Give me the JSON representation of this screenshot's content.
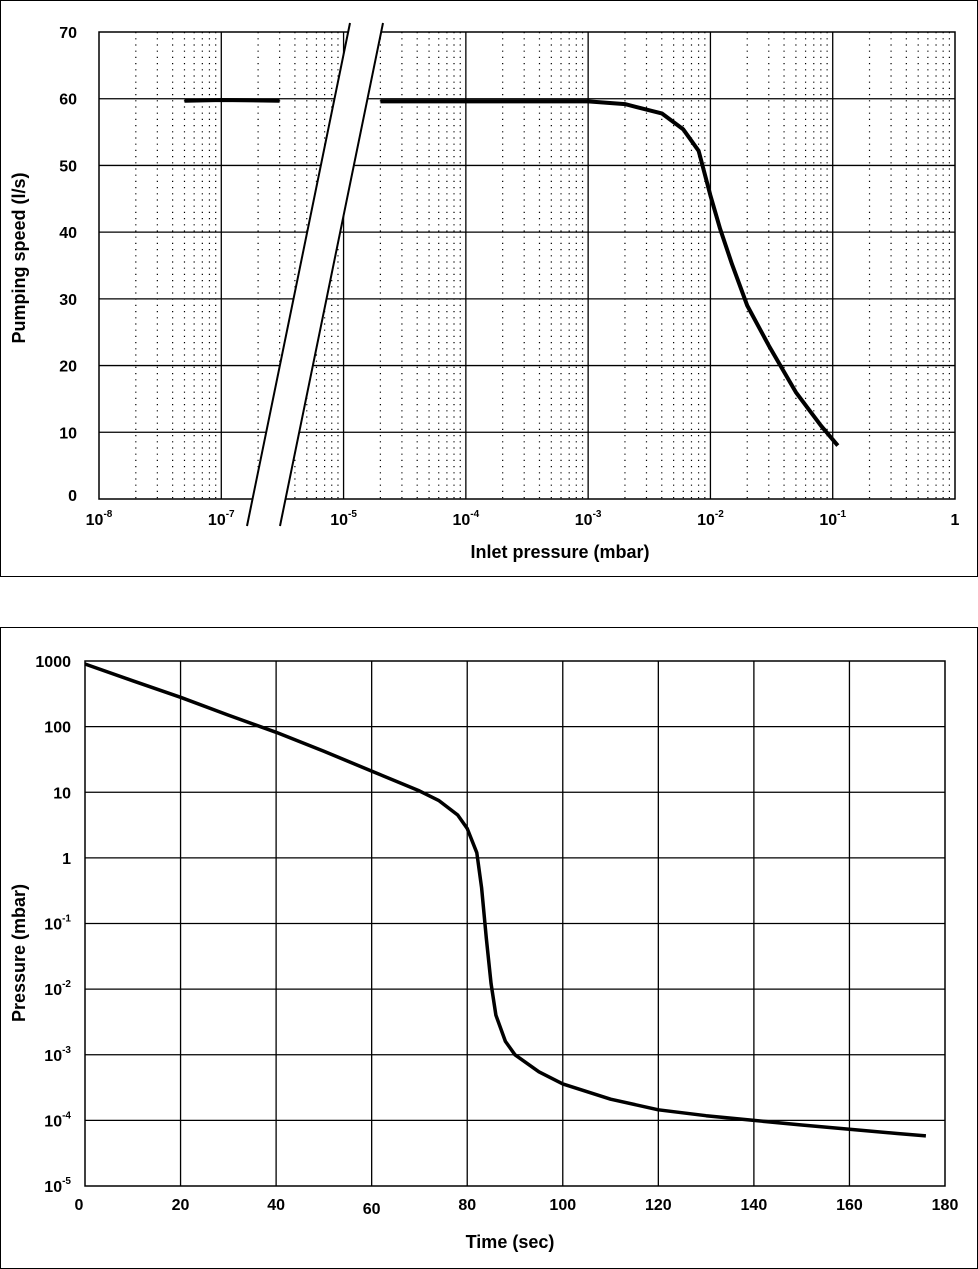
{
  "chart_data": [
    {
      "type": "line",
      "title": "",
      "xlabel": "Inlet pressure (mbar)",
      "ylabel": "Pumping speed (l/s)",
      "x_scale": "log",
      "xlim": [
        1e-08,
        1
      ],
      "ylim": [
        0,
        70
      ],
      "grid": true,
      "axis_break": "between 1e-7 and 1e-5",
      "x_ticks": [
        {
          "base": "10",
          "exp": "-8"
        },
        {
          "base": "10",
          "exp": "-7"
        },
        {
          "base": "10",
          "exp": "-5"
        },
        {
          "base": "10",
          "exp": "-4"
        },
        {
          "base": "10",
          "exp": "-3"
        },
        {
          "base": "10",
          "exp": "-2"
        },
        {
          "base": "10",
          "exp": "-1"
        },
        {
          "base": "1",
          "exp": ""
        }
      ],
      "y_ticks": [
        "0",
        "10",
        "20",
        "30",
        "40",
        "50",
        "60",
        "70"
      ],
      "series": [
        {
          "x": [
            5e-08,
            1e-07,
            3e-07,
            2e-05,
            0.0001,
            0.001,
            0.002,
            0.004,
            0.006,
            0.008,
            0.01,
            0.012,
            0.015,
            0.02,
            0.03,
            0.05,
            0.08,
            0.11
          ],
          "y": [
            59.7,
            59.8,
            59.7,
            59.6,
            59.6,
            59.6,
            59.2,
            57.8,
            55.4,
            52.2,
            45.5,
            40.5,
            35.2,
            29.0,
            23.0,
            16.0,
            11.0,
            8.0
          ]
        }
      ]
    },
    {
      "type": "line",
      "title": "",
      "xlabel": "Time (sec)",
      "ylabel": "Pressure (mbar)",
      "y_scale": "log",
      "xlim": [
        0,
        180
      ],
      "ylim": [
        1e-05,
        1000
      ],
      "grid": true,
      "x_ticks": [
        "0",
        "20",
        "40",
        "60",
        "80",
        "100",
        "120",
        "140",
        "160",
        "180"
      ],
      "y_ticks": [
        {
          "base": "10",
          "exp": "-5"
        },
        {
          "base": "10",
          "exp": "-4"
        },
        {
          "base": "10",
          "exp": "-3"
        },
        {
          "base": "10",
          "exp": "-2"
        },
        {
          "base": "10",
          "exp": "-1"
        },
        {
          "base": "1",
          "exp": ""
        },
        {
          "base": "10",
          "exp": ""
        },
        {
          "base": "100",
          "exp": ""
        },
        {
          "base": "1000",
          "exp": ""
        }
      ],
      "series": [
        {
          "x": [
            0,
            10,
            20,
            30,
            40,
            50,
            60,
            70,
            74,
            78,
            80,
            82,
            83,
            84,
            85,
            86,
            88,
            90,
            95,
            100,
            110,
            120,
            130,
            140,
            150,
            160,
            170,
            176
          ],
          "y": [
            900,
            500,
            280,
            150,
            82,
            42,
            21,
            10.5,
            7.5,
            4.5,
            2.8,
            1.2,
            0.35,
            0.06,
            0.012,
            0.004,
            0.0016,
            0.001,
            0.00055,
            0.00036,
            0.00021,
            0.000145,
            0.000118,
            0.0001,
            8.5e-05,
            7.3e-05,
            6.3e-05,
            5.8e-05
          ]
        }
      ]
    }
  ]
}
